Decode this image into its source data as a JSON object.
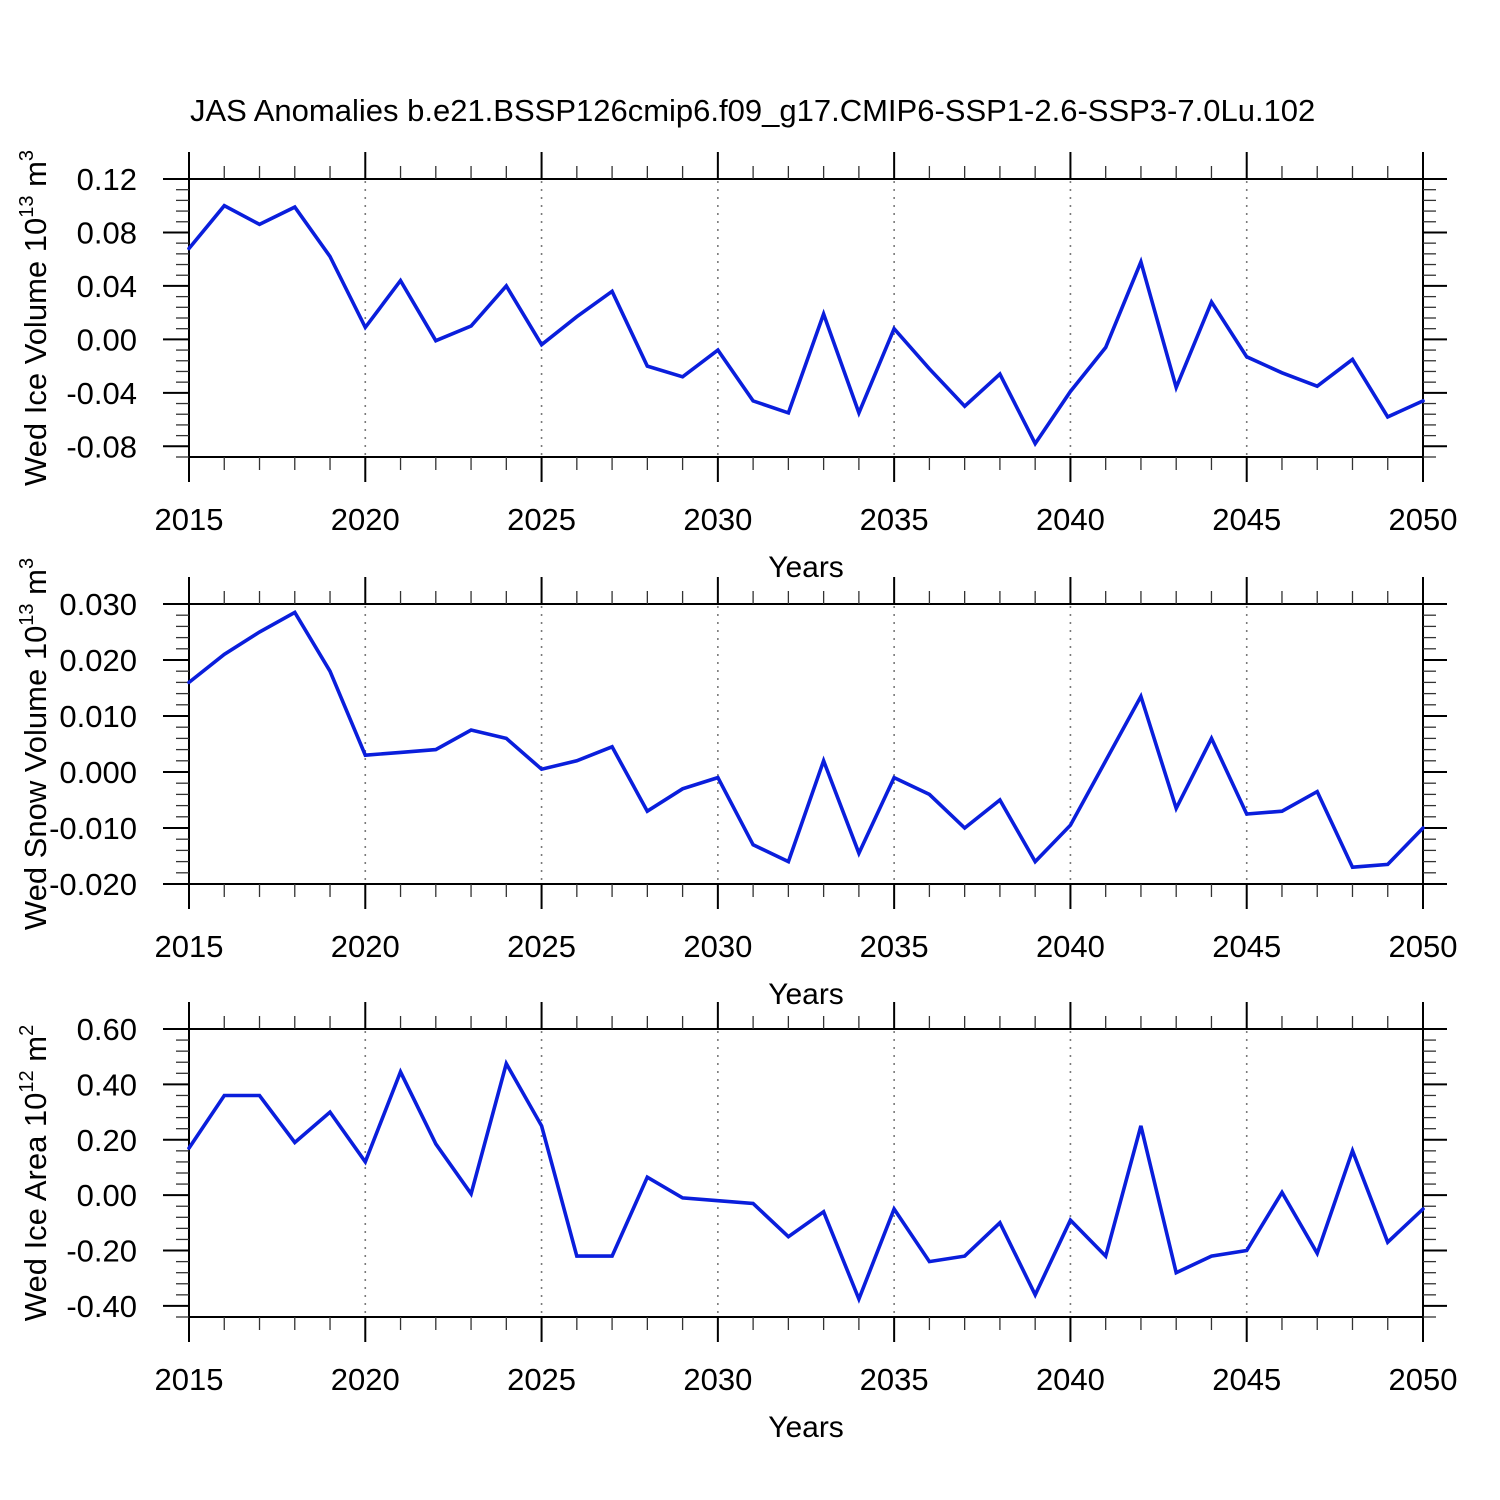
{
  "title": "JAS Anomalies b.e21.BSSP126cmip6.f09_g17.CMIP6-SSP1-2.6-SSP3-7.0Lu.102",
  "colors": {
    "line": "#0a1edc",
    "axis": "#000000",
    "minor_tick": "#333333",
    "grid": "#7a7a7a"
  },
  "chart_data": [
    {
      "type": "line",
      "name": "wed-ice-volume",
      "xlabel": "Years",
      "ylabel_parts": [
        [
          "Wed Ice Volume 10",
          false
        ],
        [
          "13",
          true
        ],
        [
          " m",
          false
        ],
        [
          "3",
          true
        ]
      ],
      "x": [
        2015,
        2016,
        2017,
        2018,
        2019,
        2020,
        2021,
        2022,
        2023,
        2024,
        2025,
        2026,
        2027,
        2028,
        2029,
        2030,
        2031,
        2032,
        2033,
        2034,
        2035,
        2036,
        2037,
        2038,
        2039,
        2040,
        2041,
        2042,
        2043,
        2044,
        2045,
        2046,
        2047,
        2048,
        2049,
        2050
      ],
      "values": [
        0.068,
        0.1,
        0.086,
        0.099,
        0.062,
        0.009,
        0.044,
        -0.001,
        0.01,
        0.04,
        -0.004,
        0.017,
        0.036,
        -0.02,
        -0.028,
        -0.008,
        -0.046,
        -0.055,
        0.019,
        -0.055,
        0.008,
        -0.022,
        -0.05,
        -0.026,
        -0.078,
        -0.039,
        -0.006,
        0.058,
        -0.036,
        0.028,
        -0.013,
        -0.025,
        -0.035,
        -0.015,
        -0.058,
        -0.046
      ],
      "ylim": [
        -0.088,
        0.12
      ],
      "yticks": [
        0.12,
        0.08,
        0.04,
        0.0,
        -0.04,
        -0.08
      ],
      "ytick_labels": [
        "0.12",
        "0.08",
        "0.04",
        "0.00",
        "-0.04",
        "-0.08"
      ],
      "y_minor_step": 0.008,
      "xticks": [
        2015,
        2020,
        2025,
        2030,
        2035,
        2040,
        2045,
        2050
      ],
      "xtick_labels": [
        "2015",
        "2020",
        "2025",
        "2030",
        "2035",
        "2040",
        "2045",
        "2050"
      ],
      "grid_years": [
        2020,
        2025,
        2030,
        2035,
        2040,
        2045
      ]
    },
    {
      "type": "line",
      "name": "wed-snow-volume",
      "xlabel": "Years",
      "ylabel_parts": [
        [
          "Wed Snow Volume 10",
          false
        ],
        [
          "13",
          true
        ],
        [
          " m",
          false
        ],
        [
          "3",
          true
        ]
      ],
      "x": [
        2015,
        2016,
        2017,
        2018,
        2019,
        2020,
        2021,
        2022,
        2023,
        2024,
        2025,
        2026,
        2027,
        2028,
        2029,
        2030,
        2031,
        2032,
        2033,
        2034,
        2035,
        2036,
        2037,
        2038,
        2039,
        2040,
        2041,
        2042,
        2043,
        2044,
        2045,
        2046,
        2047,
        2048,
        2049,
        2050
      ],
      "values": [
        0.016,
        0.021,
        0.025,
        0.0285,
        0.018,
        0.003,
        0.0035,
        0.004,
        0.0075,
        0.006,
        0.0005,
        0.002,
        0.0045,
        -0.007,
        -0.003,
        -0.001,
        -0.013,
        -0.016,
        0.002,
        -0.0145,
        -0.001,
        -0.004,
        -0.01,
        -0.005,
        -0.016,
        -0.0095,
        0.002,
        0.0135,
        -0.0065,
        0.006,
        -0.0075,
        -0.007,
        -0.0035,
        -0.017,
        -0.0165,
        -0.01
      ],
      "ylim": [
        -0.02,
        0.03
      ],
      "yticks": [
        0.03,
        0.02,
        0.01,
        0.0,
        -0.01,
        -0.02
      ],
      "ytick_labels": [
        "0.030",
        "0.020",
        "0.010",
        "0.000",
        "-0.010",
        "-0.020"
      ],
      "y_minor_step": 0.002,
      "xticks": [
        2015,
        2020,
        2025,
        2030,
        2035,
        2040,
        2045,
        2050
      ],
      "xtick_labels": [
        "2015",
        "2020",
        "2025",
        "2030",
        "2035",
        "2040",
        "2045",
        "2050"
      ],
      "grid_years": [
        2020,
        2025,
        2030,
        2035,
        2040,
        2045
      ]
    },
    {
      "type": "line",
      "name": "wed-ice-area",
      "xlabel": "Years",
      "ylabel_parts": [
        [
          "Wed Ice Area 10",
          false
        ],
        [
          "12",
          true
        ],
        [
          " m",
          false
        ],
        [
          "2",
          true
        ]
      ],
      "x": [
        2015,
        2016,
        2017,
        2018,
        2019,
        2020,
        2021,
        2022,
        2023,
        2024,
        2025,
        2026,
        2027,
        2028,
        2029,
        2030,
        2031,
        2032,
        2033,
        2034,
        2035,
        2036,
        2037,
        2038,
        2039,
        2040,
        2041,
        2042,
        2043,
        2044,
        2045,
        2046,
        2047,
        2048,
        2049,
        2050
      ],
      "values": [
        0.17,
        0.36,
        0.36,
        0.19,
        0.3,
        0.12,
        0.445,
        0.185,
        0.005,
        0.475,
        0.25,
        -0.22,
        -0.22,
        0.065,
        -0.01,
        -0.02,
        -0.03,
        -0.15,
        -0.06,
        -0.375,
        -0.05,
        -0.24,
        -0.22,
        -0.1,
        -0.36,
        -0.09,
        -0.22,
        0.25,
        -0.28,
        -0.22,
        -0.2,
        0.01,
        -0.21,
        0.16,
        -0.17,
        -0.05
      ],
      "ylim": [
        -0.44,
        0.6
      ],
      "yticks": [
        0.6,
        0.4,
        0.2,
        0.0,
        -0.2,
        -0.4
      ],
      "ytick_labels": [
        "0.60",
        "0.40",
        "0.20",
        "0.00",
        "-0.20",
        "-0.40"
      ],
      "y_minor_step": 0.04,
      "xticks": [
        2015,
        2020,
        2025,
        2030,
        2035,
        2040,
        2045,
        2050
      ],
      "xtick_labels": [
        "2015",
        "2020",
        "2025",
        "2030",
        "2035",
        "2040",
        "2045",
        "2050"
      ],
      "grid_years": [
        2020,
        2025,
        2030,
        2035,
        2040,
        2045
      ]
    }
  ]
}
